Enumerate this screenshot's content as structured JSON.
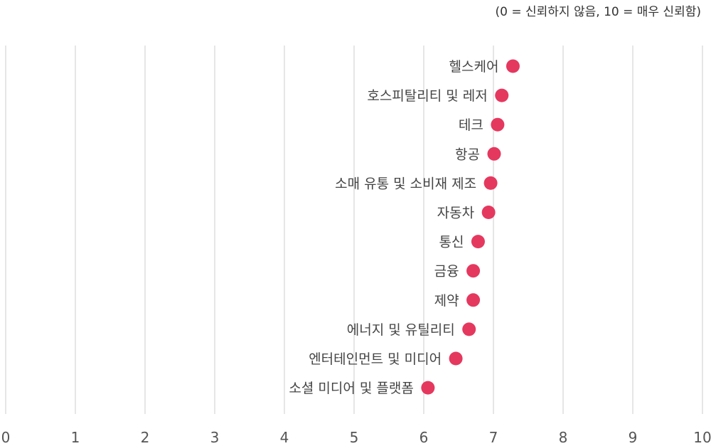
{
  "subtitle": "(0 = 신뢰하지 않음, 10 = 매우 신뢰함)",
  "chart_data": {
    "type": "scatter",
    "orientation": "horizontal-dot",
    "title": "",
    "subtitle": "(0 = 신뢰하지 않음, 10 = 매우 신뢰함)",
    "xlim": [
      0,
      10
    ],
    "x_ticks": [
      "0",
      "1",
      "2",
      "3",
      "4",
      "5",
      "6",
      "7",
      "8",
      "9",
      "10"
    ],
    "grid": true,
    "color": "#e5385f",
    "categories": [
      "헬스케어",
      "호스피탈리티 및 레저",
      "테크",
      "항공",
      "소매 유통 및 소비재 제조",
      "자동차",
      "통신",
      "금융",
      "제약",
      "에너지 및 유틸리티",
      "엔터테인먼트 및 미디어",
      "소셜 미디어 및 플랫폼"
    ],
    "values": [
      7.28,
      7.12,
      7.06,
      7.01,
      6.96,
      6.93,
      6.78,
      6.71,
      6.71,
      6.65,
      6.46,
      6.06
    ]
  }
}
